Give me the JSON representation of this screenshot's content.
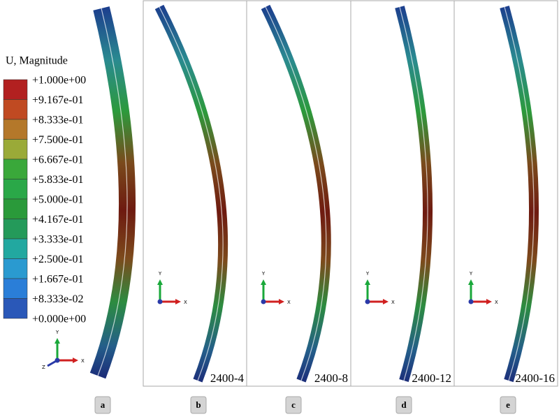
{
  "legend": {
    "title": "U, Magnitude",
    "levels": [
      "+1.000e+00",
      "+9.167e-01",
      "+8.333e-01",
      "+7.500e-01",
      "+6.667e-01",
      "+5.833e-01",
      "+5.000e-01",
      "+4.167e-01",
      "+3.333e-01",
      "+2.500e-01",
      "+1.667e-01",
      "+8.333e-02",
      "+0.000e+00"
    ]
  },
  "triad": {
    "x": "X",
    "y": "Y",
    "z": "Z"
  },
  "panels": [
    {
      "label": "a"
    },
    {
      "label": "b",
      "specimen": "2400-4"
    },
    {
      "label": "c",
      "specimen": "2400-8"
    },
    {
      "label": "d",
      "specimen": "2400-12"
    },
    {
      "label": "e",
      "specimen": "2400-16"
    }
  ]
}
